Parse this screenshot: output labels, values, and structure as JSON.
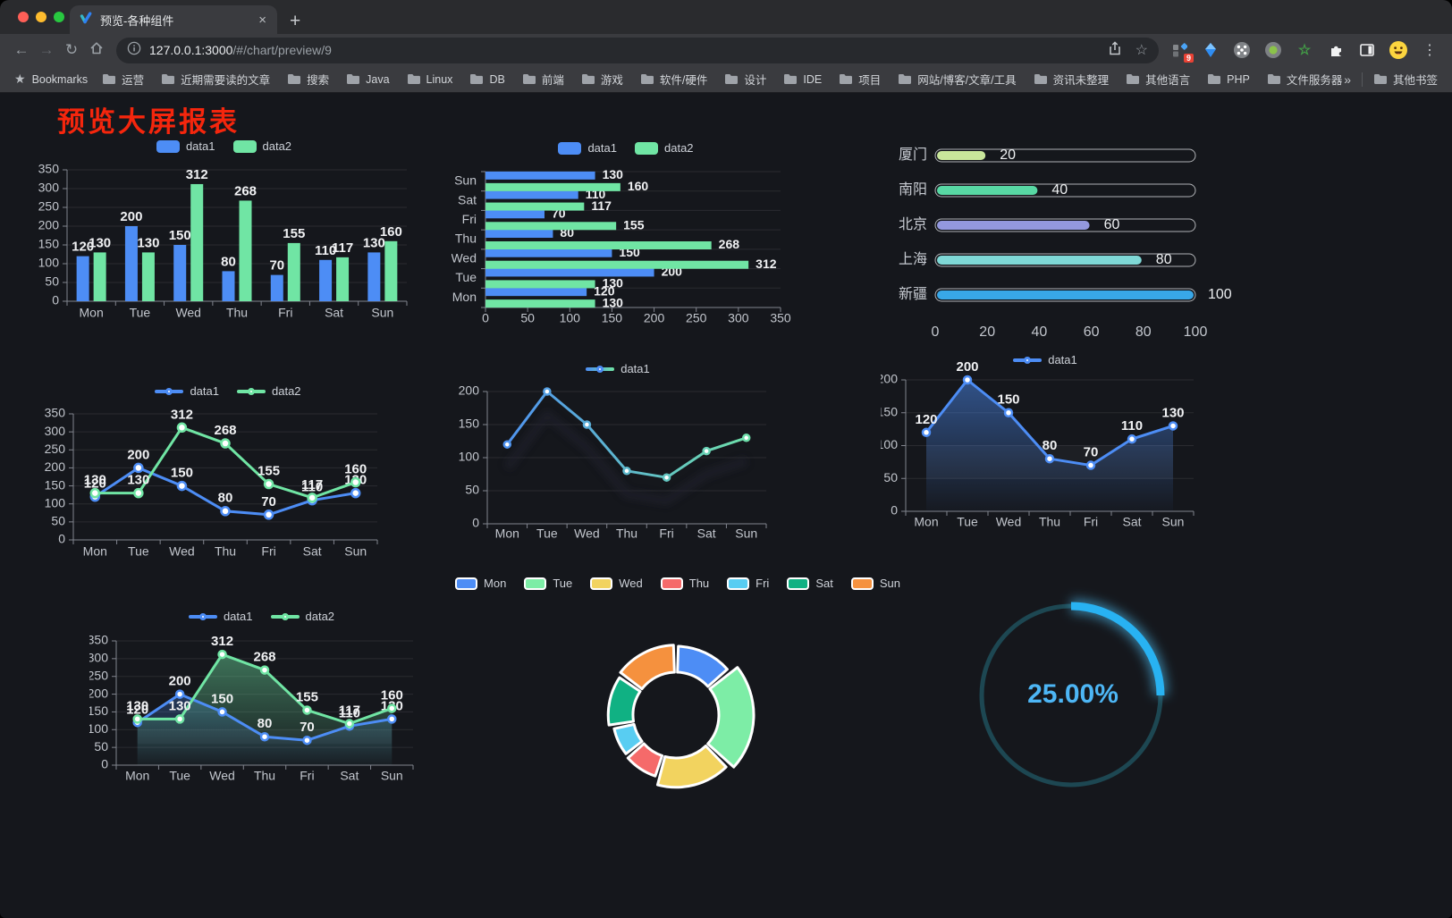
{
  "browser": {
    "tab_title": "预览-各种组件",
    "url_host": "127.0.0.1:3000",
    "url_path": "/#/chart/preview/9",
    "bookmarks_label": "Bookmarks",
    "bookmarks": [
      "运营",
      "近期需要读的文章",
      "搜索",
      "Java",
      "Linux",
      "DB",
      "前端",
      "游戏",
      "软件/硬件",
      "设计",
      "IDE",
      "项目",
      "网站/博客/文章/工具",
      "资讯未整理",
      "其他语言",
      "PHP",
      "文件服务器"
    ],
    "other_bookmarks": "其他书签",
    "extension_badge": "9"
  },
  "icons": {
    "back": "←",
    "forward": "→",
    "reload": "↻",
    "star": "☆",
    "close_tab": "×",
    "new_tab": "+",
    "menu": "⋮",
    "bookmarks_star": "★",
    "overflow": "»",
    "green_star": "☆",
    "kite": "◆"
  },
  "page": {
    "title": "预览大屏报表",
    "title_color": "#f5260d"
  },
  "chart_data": [
    {
      "id": "bar-vertical",
      "type": "bar",
      "categories": [
        "Mon",
        "Tue",
        "Wed",
        "Thu",
        "Fri",
        "Sat",
        "Sun"
      ],
      "series": [
        {
          "name": "data1",
          "color": "#4d8df5",
          "values": [
            120,
            200,
            150,
            80,
            70,
            110,
            130
          ]
        },
        {
          "name": "data2",
          "color": "#70e5a4",
          "values": [
            130,
            130,
            312,
            268,
            155,
            117,
            160
          ]
        }
      ],
      "ylim": [
        0,
        350
      ],
      "ytick": 50,
      "legend_position": "top"
    },
    {
      "id": "bar-horizontal",
      "type": "bar",
      "variant": "horizontal",
      "categories": [
        "Mon",
        "Tue",
        "Wed",
        "Thu",
        "Fri",
        "Sat",
        "Sun"
      ],
      "series": [
        {
          "name": "data1",
          "color": "#4d8df5",
          "values": [
            120,
            200,
            150,
            80,
            70,
            110,
            130
          ]
        },
        {
          "name": "data2",
          "color": "#70e5a4",
          "values": [
            130,
            130,
            312,
            268,
            155,
            117,
            160
          ]
        }
      ],
      "xlim": [
        0,
        350
      ],
      "xtick": 50,
      "legend_position": "top"
    },
    {
      "id": "capsule",
      "type": "bar",
      "variant": "capsule-horizontal",
      "items": [
        {
          "label": "厦门",
          "value": 20,
          "color": "#c9e69b"
        },
        {
          "label": "南阳",
          "value": 40,
          "color": "#58d8a4"
        },
        {
          "label": "北京",
          "value": 60,
          "color": "#9398de"
        },
        {
          "label": "上海",
          "value": 80,
          "color": "#7fd8d6"
        },
        {
          "label": "新疆",
          "value": 100,
          "color": "#38a7e8"
        }
      ],
      "xlim": [
        0,
        100
      ],
      "xticks": [
        0,
        20,
        40,
        60,
        80,
        100
      ]
    },
    {
      "id": "line-two",
      "type": "line",
      "categories": [
        "Mon",
        "Tue",
        "Wed",
        "Thu",
        "Fri",
        "Sat",
        "Sun"
      ],
      "series": [
        {
          "name": "data1",
          "color": "#4d8df5",
          "values": [
            120,
            200,
            150,
            80,
            70,
            110,
            130
          ],
          "labels": true
        },
        {
          "name": "data2",
          "color": "#70e5a4",
          "values": [
            130,
            130,
            312,
            268,
            155,
            117,
            160
          ],
          "labels": true
        }
      ],
      "ylim": [
        0,
        350
      ],
      "ytick": 50,
      "legend_position": "top"
    },
    {
      "id": "line-gradient",
      "type": "line",
      "categories": [
        "Mon",
        "Tue",
        "Wed",
        "Thu",
        "Fri",
        "Sat",
        "Sun"
      ],
      "series": [
        {
          "name": "data1",
          "gradient": [
            "#4d8df5",
            "#70e5a4"
          ],
          "values": [
            120,
            200,
            150,
            80,
            70,
            110,
            130
          ]
        }
      ],
      "ylim": [
        0,
        200
      ],
      "ytick": 50,
      "shadow": true,
      "legend_position": "top"
    },
    {
      "id": "line-area",
      "type": "line",
      "categories": [
        "Mon",
        "Tue",
        "Wed",
        "Thu",
        "Fri",
        "Sat",
        "Sun"
      ],
      "series": [
        {
          "name": "data1",
          "color": "#4d8df5",
          "values": [
            120,
            200,
            150,
            80,
            70,
            110,
            130
          ],
          "labels": true,
          "area": true
        }
      ],
      "ylim": [
        0,
        200
      ],
      "ytick": 50,
      "legend_position": "top"
    },
    {
      "id": "line-area-two",
      "type": "line",
      "categories": [
        "Mon",
        "Tue",
        "Wed",
        "Thu",
        "Fri",
        "Sat",
        "Sun"
      ],
      "series": [
        {
          "name": "data1",
          "color": "#4d8df5",
          "values": [
            120,
            200,
            150,
            80,
            70,
            110,
            130
          ],
          "labels": true,
          "area": true
        },
        {
          "name": "data2",
          "color": "#70e5a4",
          "values": [
            130,
            130,
            312,
            268,
            155,
            117,
            160
          ],
          "labels": true,
          "area": true
        }
      ],
      "ylim": [
        0,
        350
      ],
      "ytick": 50,
      "legend_position": "top"
    },
    {
      "id": "pie-rose",
      "type": "pie",
      "variant": "rose-doughnut",
      "items": [
        {
          "label": "Mon",
          "value": 120,
          "color": "#4d8df5"
        },
        {
          "label": "Tue",
          "value": 200,
          "color": "#7deda6"
        },
        {
          "label": "Wed",
          "value": 150,
          "color": "#f2d35f"
        },
        {
          "label": "Thu",
          "value": 80,
          "color": "#f56a6a"
        },
        {
          "label": "Fri",
          "value": 70,
          "color": "#58cdf2"
        },
        {
          "label": "Sat",
          "value": 110,
          "color": "#10b183"
        },
        {
          "label": "Sun",
          "value": 130,
          "color": "#f5913e"
        }
      ],
      "legend_position": "top"
    },
    {
      "id": "gauge",
      "type": "gauge",
      "percent": 25,
      "label": "25.00%",
      "color": "#28b2f2",
      "track_color": "#1d4752",
      "text_color": "#4db6f5"
    }
  ]
}
